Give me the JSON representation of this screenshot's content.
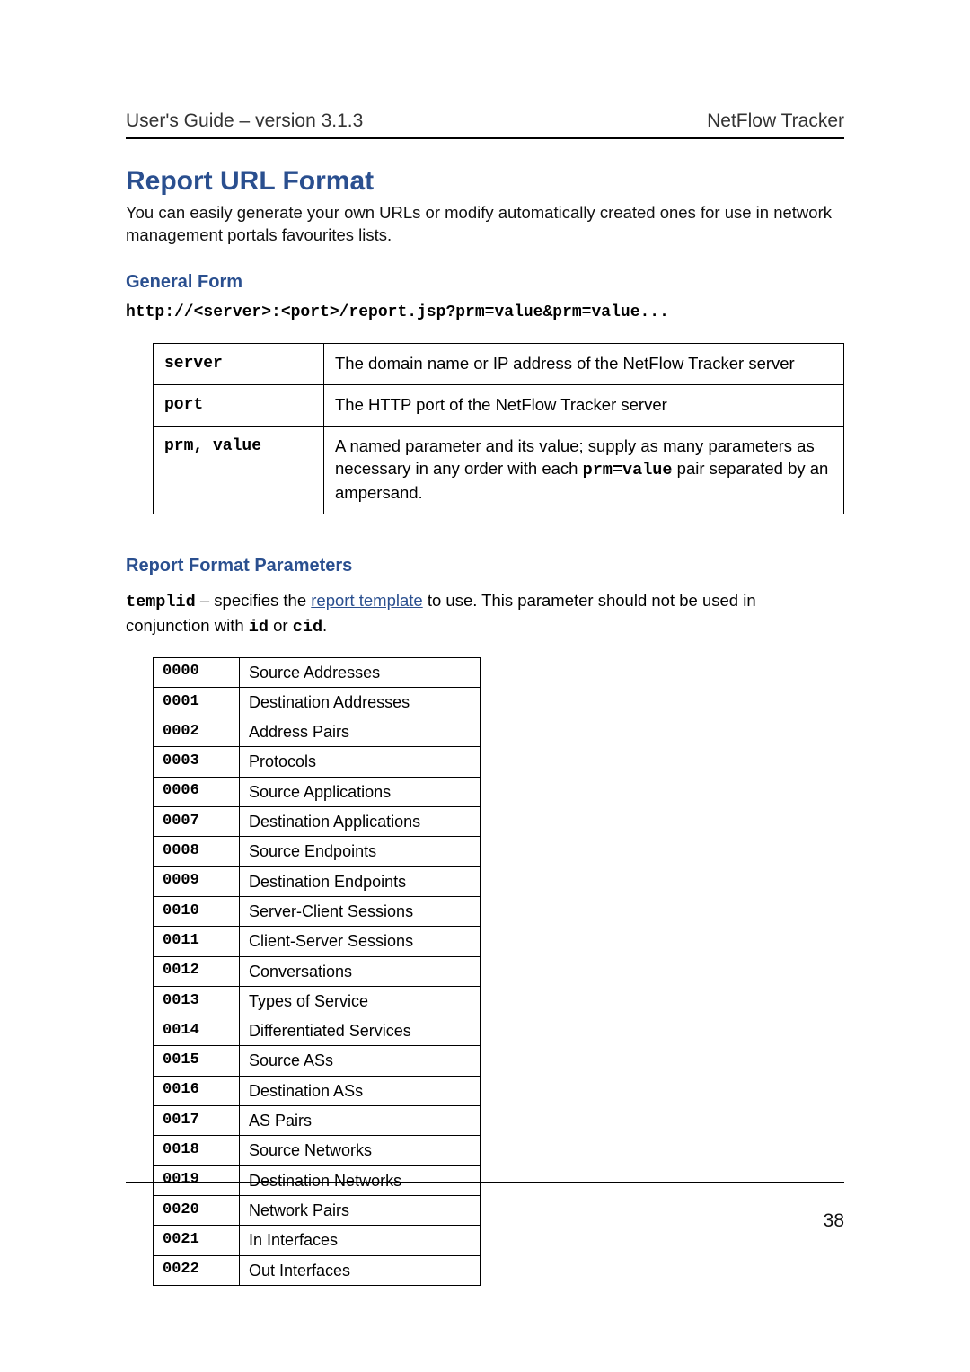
{
  "header": {
    "left": "User's Guide – version 3.1.3",
    "right": "NetFlow Tracker"
  },
  "title": "Report URL Format",
  "intro": "You can easily generate your own URLs or modify automatically created ones for use in network management portals favourites lists.",
  "general_form": {
    "heading": "General Form",
    "url": "http://<server>:<port>/report.jsp?prm=value&prm=value...",
    "rows": [
      {
        "key": "server",
        "desc_html": "The domain name or IP address of the NetFlow Tracker server"
      },
      {
        "key": "port",
        "desc_html": "The HTTP port of the NetFlow Tracker server"
      },
      {
        "key": "prm, value",
        "desc_html": "A named parameter and its value; supply as many parameters as necessary in any order with each <span class=\"mono\">prm=value</span> pair separated by an ampersand."
      }
    ]
  },
  "report_format": {
    "heading": "Report Format Parameters",
    "templid_html": "<span class=\"mono\">templid</span> – specifies the <span class=\"link\">report template</span> to use. This parameter should not be used in conjunction with <span class=\"mono\">id</span> or <span class=\"mono\">cid</span>.",
    "codes": [
      {
        "code": "0000",
        "label": "Source Addresses"
      },
      {
        "code": "0001",
        "label": "Destination Addresses"
      },
      {
        "code": "0002",
        "label": "Address Pairs"
      },
      {
        "code": "0003",
        "label": "Protocols"
      },
      {
        "code": "0006",
        "label": "Source Applications"
      },
      {
        "code": "0007",
        "label": "Destination Applications"
      },
      {
        "code": "0008",
        "label": "Source Endpoints"
      },
      {
        "code": "0009",
        "label": "Destination Endpoints"
      },
      {
        "code": "0010",
        "label": "Server-Client Sessions"
      },
      {
        "code": "0011",
        "label": "Client-Server Sessions"
      },
      {
        "code": "0012",
        "label": "Conversations"
      },
      {
        "code": "0013",
        "label": "Types of Service"
      },
      {
        "code": "0014",
        "label": "Differentiated Services"
      },
      {
        "code": "0015",
        "label": "Source ASs"
      },
      {
        "code": "0016",
        "label": "Destination ASs"
      },
      {
        "code": "0017",
        "label": "AS Pairs"
      },
      {
        "code": "0018",
        "label": "Source Networks"
      },
      {
        "code": "0019",
        "label": "Destination Networks"
      },
      {
        "code": "0020",
        "label": "Network Pairs"
      },
      {
        "code": "0021",
        "label": "In Interfaces"
      },
      {
        "code": "0022",
        "label": "Out Interfaces"
      }
    ]
  },
  "page_number": "38"
}
